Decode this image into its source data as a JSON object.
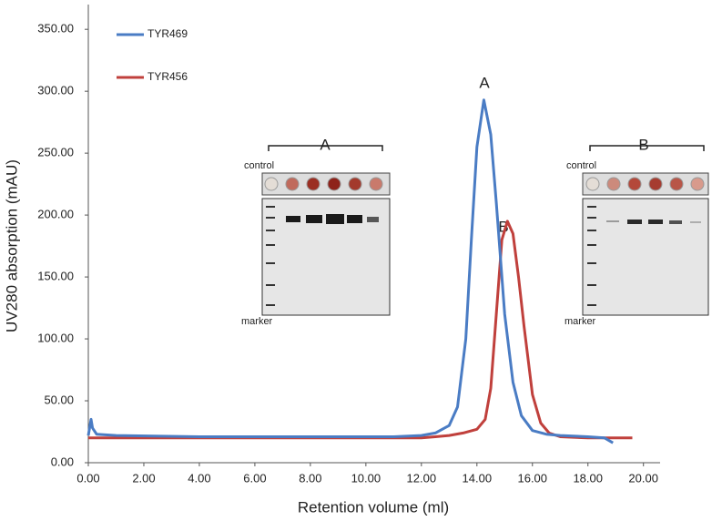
{
  "chart_data": {
    "type": "line",
    "xlabel": "Retention volume (ml)",
    "ylabel": "UV280 absorption (mAU)",
    "xlim": [
      0,
      20.6
    ],
    "ylim": [
      0,
      370
    ],
    "xticks": [
      {
        "value": 0,
        "label": "0.00"
      },
      {
        "value": 2,
        "label": "2.00"
      },
      {
        "value": 4,
        "label": "4.00"
      },
      {
        "value": 6,
        "label": "6.00"
      },
      {
        "value": 8,
        "label": "8.00"
      },
      {
        "value": 10,
        "label": "10.00"
      },
      {
        "value": 12,
        "label": "12.00"
      },
      {
        "value": 14,
        "label": "14.00"
      },
      {
        "value": 16,
        "label": "16.00"
      },
      {
        "value": 18,
        "label": "18.00"
      },
      {
        "value": 20,
        "label": "20.00"
      }
    ],
    "yticks": [
      {
        "value": 0,
        "label": "0.00"
      },
      {
        "value": 50,
        "label": "50.00"
      },
      {
        "value": 100,
        "label": "100.00"
      },
      {
        "value": 150,
        "label": "150.00"
      },
      {
        "value": 200,
        "label": "200.00"
      },
      {
        "value": 250,
        "label": "250.00"
      },
      {
        "value": 300,
        "label": "300.00"
      },
      {
        "value": 350,
        "label": "350.00"
      }
    ],
    "legend": "upper left",
    "series": [
      {
        "name": "TYR469",
        "color": "#4a7cc4",
        "x": [
          0,
          0.1,
          0.15,
          0.3,
          1,
          4,
          8,
          11,
          12,
          12.5,
          13,
          13.3,
          13.6,
          13.8,
          14,
          14.25,
          14.5,
          14.7,
          15,
          15.3,
          15.6,
          16,
          16.5,
          17,
          18,
          18.6,
          18.9
        ],
        "values": [
          22,
          35,
          28,
          23,
          22,
          21,
          21,
          21,
          22,
          24,
          30,
          45,
          100,
          180,
          255,
          293,
          265,
          210,
          120,
          65,
          38,
          26,
          23,
          22,
          21,
          20,
          16
        ]
      },
      {
        "name": "TYR456",
        "color": "#c0403c",
        "x": [
          0,
          1,
          4,
          8,
          12,
          12.5,
          13,
          13.5,
          14,
          14.3,
          14.5,
          14.7,
          14.9,
          15.1,
          15.3,
          15.5,
          15.7,
          16,
          16.3,
          16.6,
          17,
          18,
          19.6
        ],
        "values": [
          20,
          20,
          20,
          20,
          20,
          21,
          22,
          24,
          27,
          35,
          60,
          120,
          180,
          195,
          185,
          150,
          110,
          55,
          32,
          24,
          21,
          20,
          20
        ]
      }
    ],
    "annotations": {
      "peak_a": "A",
      "peak_b": "B",
      "inset_a": "A",
      "inset_b": "B",
      "control_a": "control",
      "marker_a": "marker",
      "control_b": "control",
      "marker_b": "marker"
    }
  }
}
